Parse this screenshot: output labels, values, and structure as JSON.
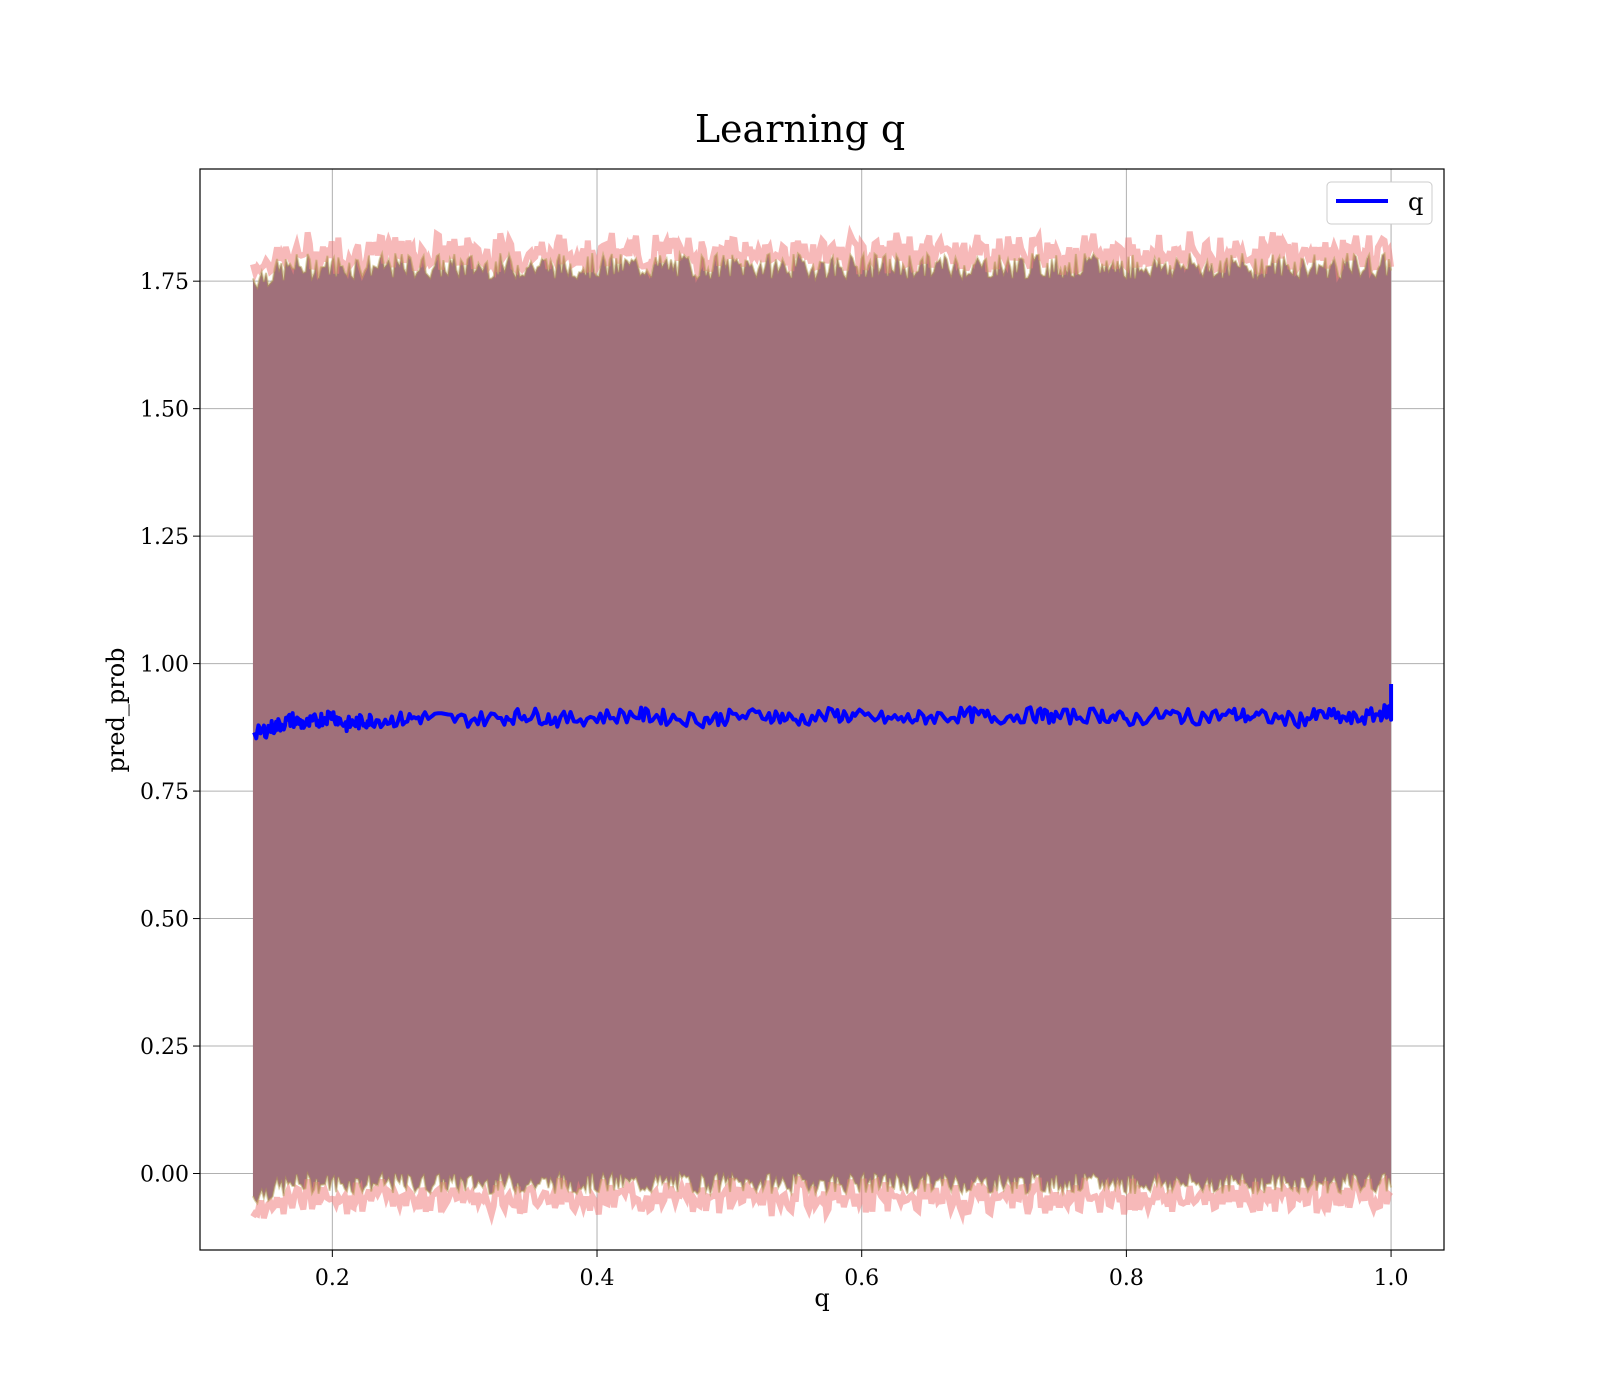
{
  "chart_data": {
    "type": "line",
    "title": "Learning q",
    "xlabel": "q",
    "ylabel": "pred_prob",
    "xlim": [
      0.1,
      1.04
    ],
    "ylim": [
      -0.15,
      1.97
    ],
    "xticks": [
      0.2,
      0.4,
      0.6,
      0.8,
      1.0
    ],
    "xtick_labels": [
      "0.2",
      "0.4",
      "0.6",
      "0.8",
      "1.0"
    ],
    "yticks": [
      0.0,
      0.25,
      0.5,
      0.75,
      1.0,
      1.25,
      1.5,
      1.75
    ],
    "ytick_labels": [
      "0.00",
      "0.25",
      "0.50",
      "0.75",
      "1.00",
      "1.25",
      "1.50",
      "1.75"
    ],
    "grid": true,
    "legend_position": "top-right",
    "series": [
      {
        "name": "q",
        "color": "#0000ff",
        "x": [
          0.14,
          0.15,
          0.16,
          0.17,
          0.18,
          0.19,
          0.2,
          0.21,
          0.22,
          0.23,
          0.25,
          0.27,
          0.3,
          0.33,
          0.35,
          0.37,
          0.4,
          0.43,
          0.45,
          0.48,
          0.5,
          0.53,
          0.55,
          0.58,
          0.6,
          0.63,
          0.65,
          0.68,
          0.7,
          0.73,
          0.75,
          0.78,
          0.8,
          0.83,
          0.85,
          0.88,
          0.9,
          0.93,
          0.95,
          0.97,
          0.99,
          1.0
        ],
        "y": [
          0.86,
          0.87,
          0.88,
          0.89,
          0.88,
          0.89,
          0.9,
          0.88,
          0.885,
          0.89,
          0.89,
          0.895,
          0.89,
          0.895,
          0.9,
          0.89,
          0.895,
          0.9,
          0.895,
          0.89,
          0.895,
          0.9,
          0.89,
          0.9,
          0.895,
          0.89,
          0.895,
          0.9,
          0.895,
          0.9,
          0.895,
          0.9,
          0.89,
          0.9,
          0.895,
          0.9,
          0.895,
          0.89,
          0.9,
          0.89,
          0.9,
          0.91
        ]
      }
    ],
    "band": {
      "color": "#a0707a",
      "edge_color": "#f08080",
      "x_start": 0.14,
      "x_end": 1.0,
      "upper": 1.78,
      "lower": -0.02
    }
  }
}
